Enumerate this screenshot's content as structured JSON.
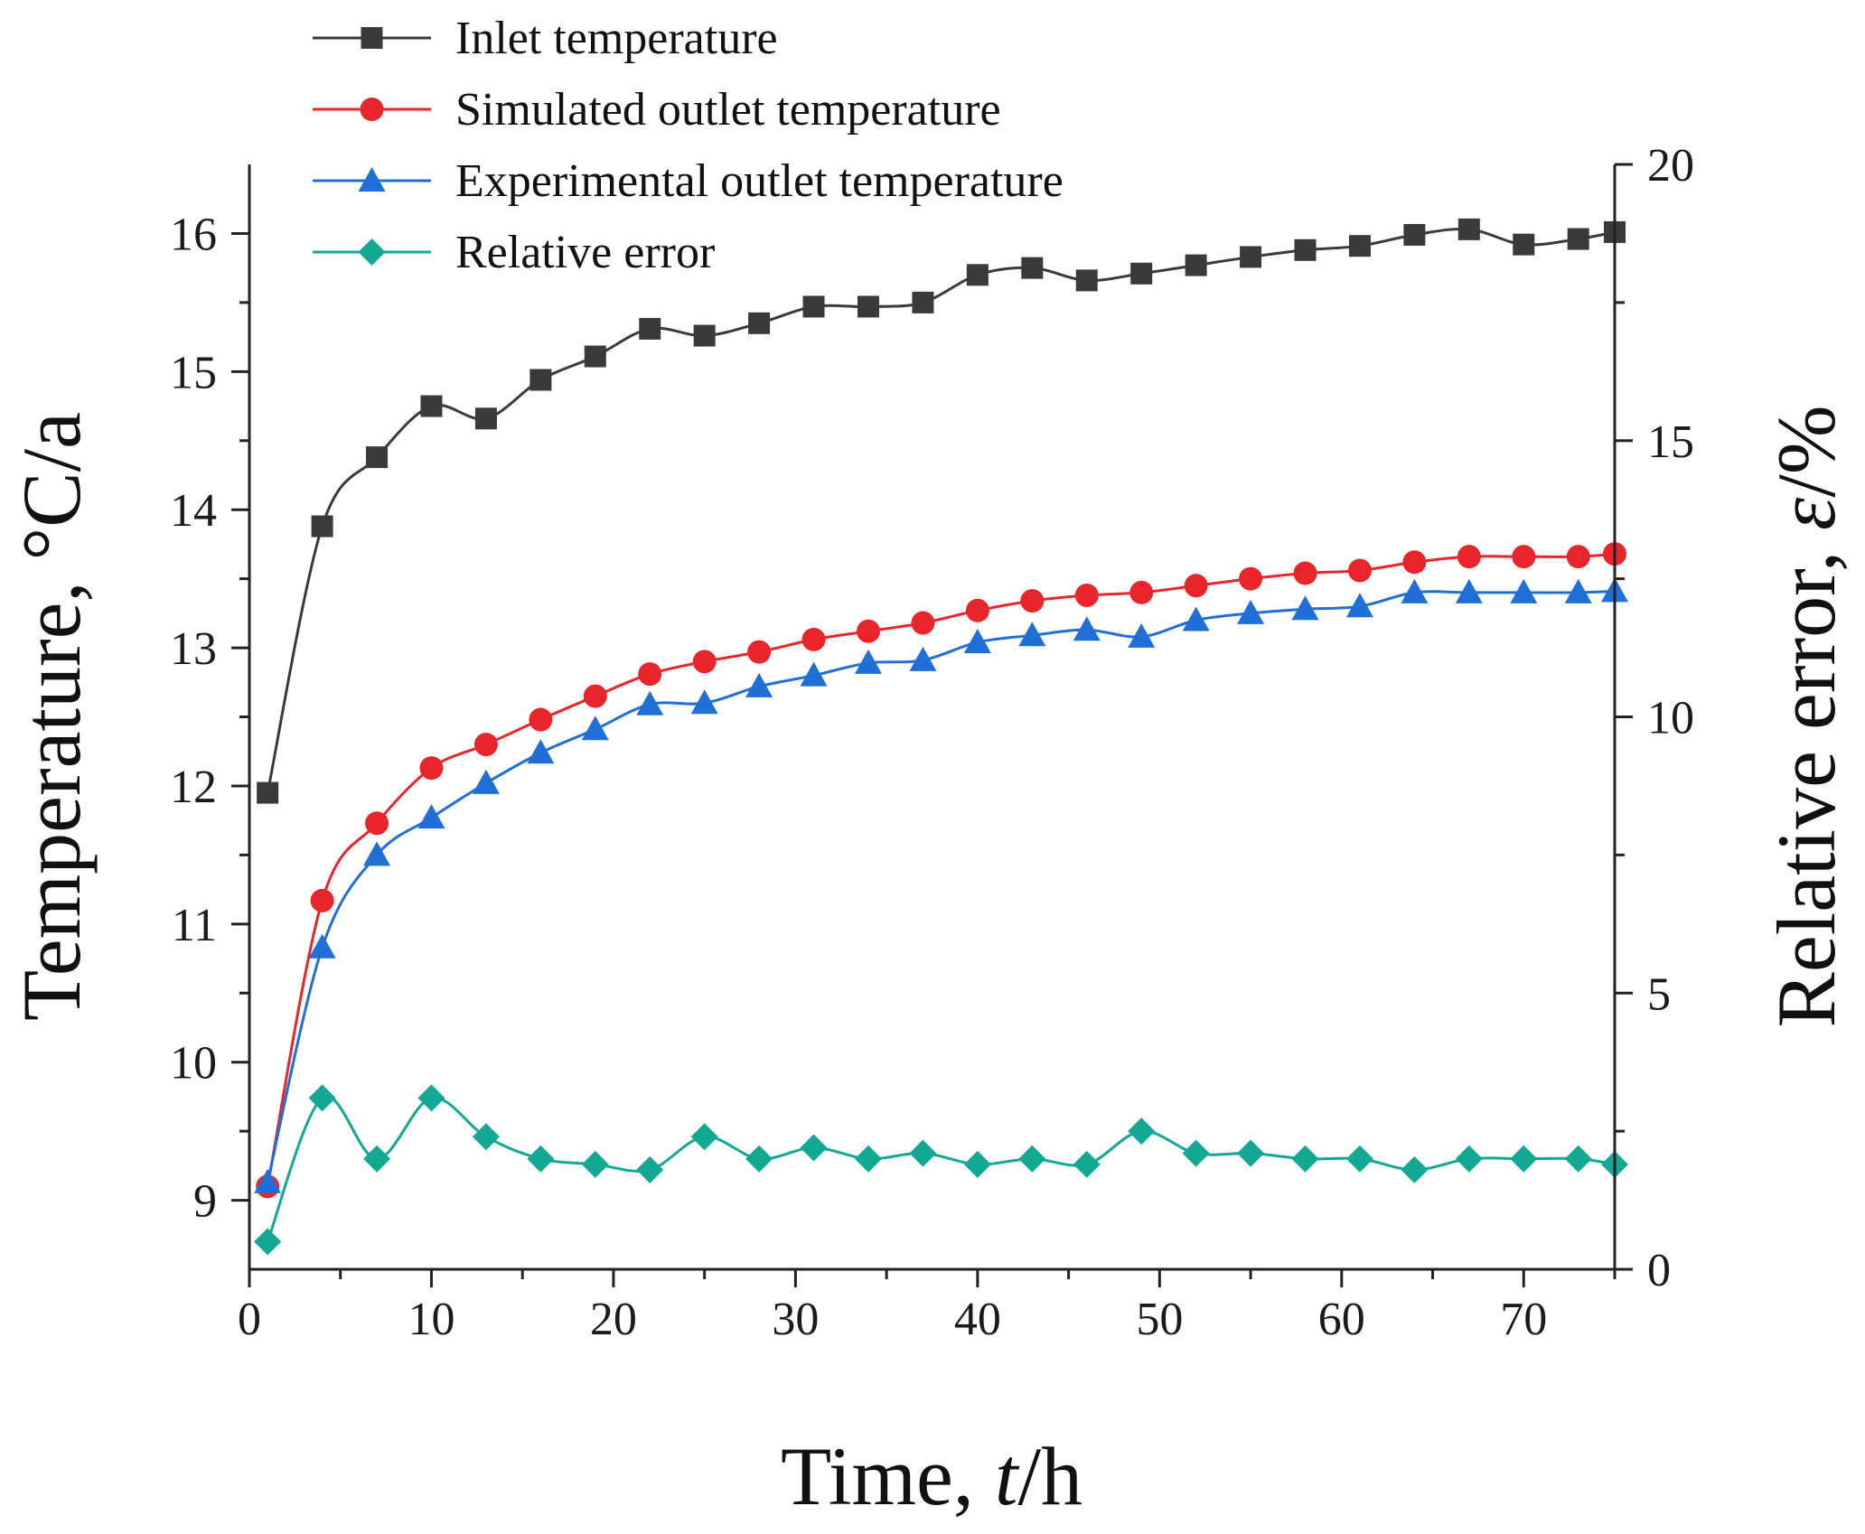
{
  "chart_data": {
    "type": "line",
    "xlabel_prefix": "Time, ",
    "xlabel_var": "t",
    "xlabel_suffix": "/h",
    "ylabel": "Temperature, °C/a",
    "y2label_prefix": "Relative error, ",
    "y2label_var": "ε",
    "y2label_suffix": "/%",
    "xlim": [
      0,
      75
    ],
    "ylim": [
      8.5,
      16.5
    ],
    "y2lim": [
      0,
      20
    ],
    "xticks": [
      0,
      10,
      20,
      30,
      40,
      50,
      60,
      70
    ],
    "yticks": [
      9,
      10,
      11,
      12,
      13,
      14,
      15,
      16
    ],
    "y2ticks": [
      0,
      5,
      10,
      15,
      20
    ],
    "legend_position": "top-left",
    "grid": false,
    "series": [
      {
        "name": "Inlet temperature",
        "axis": "left",
        "color": "#3a3a3a",
        "marker": "square",
        "x": [
          1,
          4,
          7,
          10,
          13,
          16,
          19,
          22,
          25,
          28,
          31,
          34,
          37,
          40,
          43,
          46,
          49,
          52,
          55,
          58,
          61,
          64,
          67,
          70,
          73,
          75
        ],
        "y": [
          11.95,
          13.88,
          14.38,
          14.75,
          14.66,
          14.94,
          15.11,
          15.31,
          15.26,
          15.35,
          15.47,
          15.47,
          15.5,
          15.7,
          15.75,
          15.66,
          15.71,
          15.77,
          15.83,
          15.88,
          15.91,
          15.99,
          16.03,
          15.92,
          15.96,
          16.01
        ]
      },
      {
        "name": "Simulated outlet temperature",
        "axis": "left",
        "color": "#e8252a",
        "marker": "circle",
        "x": [
          1,
          4,
          7,
          10,
          13,
          16,
          19,
          22,
          25,
          28,
          31,
          34,
          37,
          40,
          43,
          46,
          49,
          52,
          55,
          58,
          61,
          64,
          67,
          70,
          73,
          75
        ],
        "y": [
          9.1,
          11.17,
          11.73,
          12.13,
          12.3,
          12.48,
          12.65,
          12.81,
          12.9,
          12.97,
          13.06,
          13.12,
          13.18,
          13.27,
          13.34,
          13.38,
          13.4,
          13.45,
          13.5,
          13.54,
          13.56,
          13.62,
          13.66,
          13.66,
          13.66,
          13.68
        ]
      },
      {
        "name": "Experimental outlet temperature",
        "axis": "left",
        "color": "#1f6fd6",
        "marker": "triangle",
        "x": [
          1,
          4,
          7,
          10,
          13,
          16,
          19,
          22,
          25,
          28,
          31,
          34,
          37,
          40,
          43,
          46,
          49,
          52,
          55,
          58,
          61,
          64,
          67,
          70,
          73,
          75
        ],
        "y": [
          9.13,
          10.83,
          11.5,
          11.77,
          12.02,
          12.24,
          12.41,
          12.59,
          12.6,
          12.72,
          12.8,
          12.89,
          12.91,
          13.04,
          13.09,
          13.13,
          13.08,
          13.2,
          13.25,
          13.28,
          13.3,
          13.4,
          13.4,
          13.4,
          13.4,
          13.41
        ]
      },
      {
        "name": "Relative error",
        "axis": "right",
        "color": "#13a893",
        "marker": "diamond",
        "x": [
          1,
          4,
          7,
          10,
          13,
          16,
          19,
          22,
          25,
          28,
          31,
          34,
          37,
          40,
          43,
          46,
          49,
          52,
          55,
          58,
          61,
          64,
          67,
          70,
          73,
          75
        ],
        "y": [
          0.5,
          3.1,
          2.0,
          3.1,
          2.4,
          2.0,
          1.9,
          1.8,
          2.4,
          2.0,
          2.2,
          2.0,
          2.1,
          1.9,
          2.0,
          1.9,
          2.5,
          2.1,
          2.1,
          2.0,
          2.0,
          1.8,
          2.0,
          2.0,
          2.0,
          1.9
        ]
      }
    ]
  }
}
